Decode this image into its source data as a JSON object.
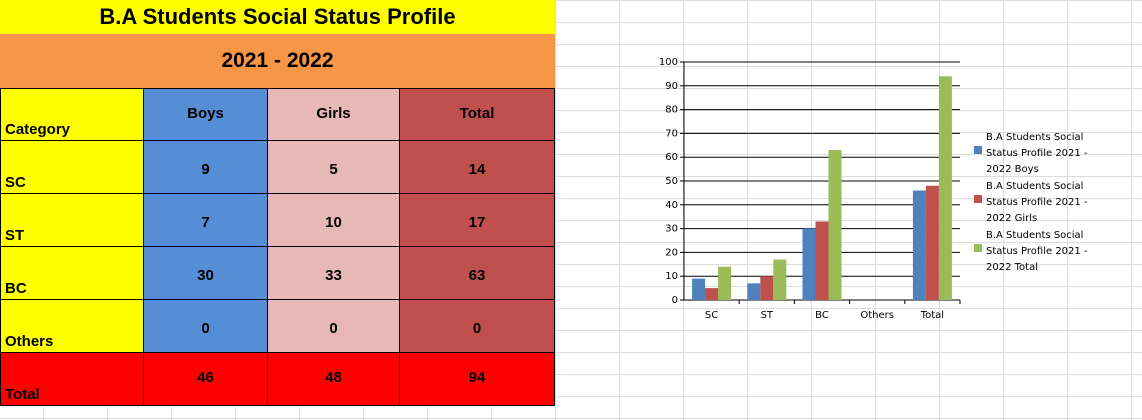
{
  "sheet": {
    "title": "B.A Students Social Status Profile",
    "year": "2021 - 2022",
    "headers": {
      "category": "Category",
      "boys": "Boys",
      "girls": "Girls",
      "total": "Total"
    },
    "rows": [
      {
        "category": "SC",
        "boys": "9",
        "girls": "5",
        "total": "14"
      },
      {
        "category": "ST",
        "boys": "7",
        "girls": "10",
        "total": "17"
      },
      {
        "category": "BC",
        "boys": "30",
        "girls": "33",
        "total": "63"
      },
      {
        "category": "Others",
        "boys": "0",
        "girls": "0",
        "total": "0"
      }
    ],
    "total_row": {
      "category": "Total",
      "boys": "46",
      "girls": "48",
      "total": "94"
    },
    "colors": {
      "title_bg": "#ffff00",
      "year_bg": "#f79646",
      "boys": "#558ed5",
      "girls": "#e6b9b8",
      "total": "#c0504d",
      "total_row": "#ff0000"
    }
  },
  "chart_data": {
    "type": "bar",
    "categories": [
      "SC",
      "ST",
      "BC",
      "Others",
      "Total"
    ],
    "series": [
      {
        "name": "B.A Students Social Status Profile 2021 - 2022 Boys",
        "values": [
          9,
          7,
          30,
          0,
          46
        ],
        "color": "#4f81bd"
      },
      {
        "name": "B.A Students Social Status Profile 2021 - 2022 Girls",
        "values": [
          5,
          10,
          33,
          0,
          48
        ],
        "color": "#c0504d"
      },
      {
        "name": "B.A Students Social Status Profile 2021 - 2022 Total",
        "values": [
          14,
          17,
          63,
          0,
          94
        ],
        "color": "#9bbb59"
      }
    ],
    "yticks": [
      "0",
      "10",
      "20",
      "30",
      "40",
      "50",
      "60",
      "70",
      "80",
      "90",
      "100"
    ],
    "ylim": [
      0,
      100
    ],
    "grid": true,
    "legend": "right",
    "legend_lines": [
      [
        "B.A Students Social",
        "Status Profile 2021 -",
        "2022 Boys"
      ],
      [
        "B.A Students Social",
        "Status Profile 2021 -",
        "2022 Girls"
      ],
      [
        "B.A Students Social",
        "Status Profile 2021 -",
        "2022 Total"
      ]
    ]
  }
}
